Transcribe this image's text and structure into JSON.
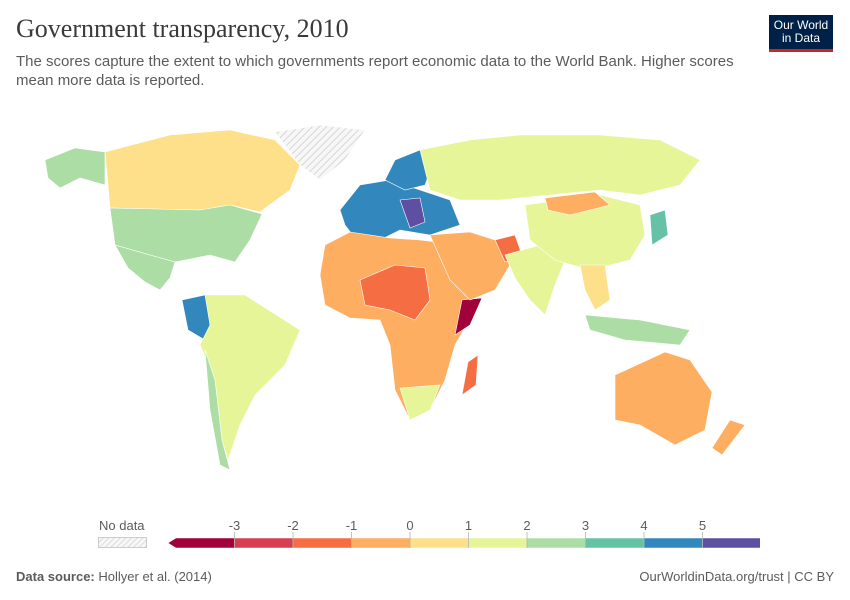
{
  "header": {
    "title": "Government transparency, 2010",
    "subtitle": "The scores capture the extent to which governments report economic data to the World Bank. Higher scores mean more data is reported.",
    "logo_line1": "Our World",
    "logo_line2": "in Data"
  },
  "legend": {
    "no_data_label": "No data",
    "ticks": [
      "-3",
      "-2",
      "-1",
      "0",
      "1",
      "2",
      "3",
      "4",
      "5"
    ],
    "colors": [
      "#a2003a",
      "#d73f50",
      "#f46d43",
      "#fdae61",
      "#fee08b",
      "#e6f598",
      "#abdda4",
      "#66c2a5",
      "#3288bd",
      "#5e4fa2"
    ],
    "no_data_color": "#e0e0e0"
  },
  "footer": {
    "source_label": "Data source:",
    "source": "Hollyer et al. (2014)",
    "right": "OurWorldinData.org/trust | CC BY"
  },
  "map_regions": [
    {
      "name": "Alaska",
      "bin": 6
    },
    {
      "name": "Canada",
      "bin": 4
    },
    {
      "name": "United States",
      "bin": 6
    },
    {
      "name": "Mexico",
      "bin": 6
    },
    {
      "name": "Greenland",
      "bin": null
    },
    {
      "name": "Colombia",
      "bin": 8
    },
    {
      "name": "South America",
      "bin": 5
    },
    {
      "name": "Chile",
      "bin": 6
    },
    {
      "name": "Europe",
      "bin": 8
    },
    {
      "name": "Scandinavia",
      "bin": 8
    },
    {
      "name": "Balkans",
      "bin": 9
    },
    {
      "name": "Russia",
      "bin": 5
    },
    {
      "name": "Africa",
      "bin": 3
    },
    {
      "name": "Sahel",
      "bin": 2
    },
    {
      "name": "Somalia",
      "bin": 0
    },
    {
      "name": "Madagascar",
      "bin": 2
    },
    {
      "name": "Southern Africa",
      "bin": 5
    },
    {
      "name": "Middle East",
      "bin": 3
    },
    {
      "name": "Afghanistan",
      "bin": 2
    },
    {
      "name": "India",
      "bin": 5
    },
    {
      "name": "China",
      "bin": 5
    },
    {
      "name": "Mongolia",
      "bin": 3
    },
    {
      "name": "Japan",
      "bin": 7
    },
    {
      "name": "Southeast Asia",
      "bin": 4
    },
    {
      "name": "Indonesia",
      "bin": 6
    },
    {
      "name": "Australia",
      "bin": 3
    },
    {
      "name": "New Zealand",
      "bin": 3
    }
  ]
}
